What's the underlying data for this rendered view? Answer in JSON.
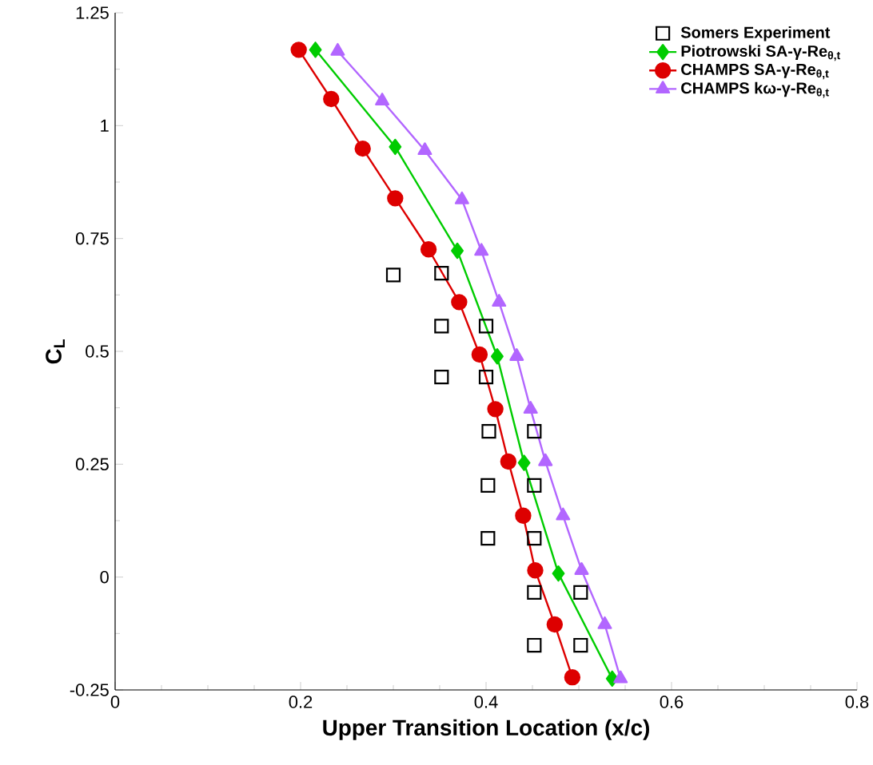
{
  "chart_data": {
    "type": "line",
    "xlabel": "Upper Transition Location (x/c)",
    "ylabel": "C$_{L}$",
    "xlim": [
      0,
      0.8
    ],
    "ylim": [
      -0.25,
      1.25
    ],
    "xticks": [
      0,
      0.2,
      0.4,
      0.6,
      0.8
    ],
    "yticks": [
      -0.25,
      0,
      0.25,
      0.5,
      0.75,
      1,
      1.25
    ],
    "legend": "top right",
    "grid": false,
    "series": [
      {
        "name": "Somers Experiment",
        "type": "scatter",
        "marker": "square",
        "color": "#000000",
        "x": [
          0.3,
          0.352,
          0.352,
          0.4,
          0.352,
          0.4,
          0.403,
          0.452,
          0.402,
          0.452,
          0.402,
          0.452,
          0.452,
          0.502,
          0.452,
          0.502
        ],
        "values": [
          0.669,
          0.673,
          0.556,
          0.556,
          0.443,
          0.443,
          0.323,
          0.323,
          0.203,
          0.203,
          0.086,
          0.086,
          -0.034,
          -0.034,
          -0.151,
          -0.151
        ]
      },
      {
        "name": "Piotrowski SA-γ-Re$_{θ,t}$",
        "marker": "diamond",
        "color": "#00cc00",
        "x": [
          0.216,
          0.302,
          0.369,
          0.412,
          0.441,
          0.478,
          0.536
        ],
        "values": [
          1.168,
          0.953,
          0.723,
          0.489,
          0.253,
          0.008,
          -0.225
        ]
      },
      {
        "name": "CHAMPS SA-γ-Re$_{θ,t}$",
        "marker": "circle",
        "color": "#dd0000",
        "x": [
          0.198,
          0.233,
          0.267,
          0.302,
          0.338,
          0.371,
          0.393,
          0.41,
          0.424,
          0.44,
          0.453,
          0.474,
          0.493
        ],
        "values": [
          1.168,
          1.059,
          0.949,
          0.839,
          0.726,
          0.609,
          0.493,
          0.372,
          0.256,
          0.136,
          0.015,
          -0.105,
          -0.222
        ]
      },
      {
        "name": "CHAMPS kω-γ-Re$_{θ,t}$",
        "marker": "triangle",
        "color": "#b266ff",
        "x": [
          0.24,
          0.288,
          0.334,
          0.374,
          0.395,
          0.414,
          0.433,
          0.448,
          0.464,
          0.483,
          0.503,
          0.528,
          0.545
        ],
        "values": [
          1.165,
          1.055,
          0.945,
          0.836,
          0.722,
          0.609,
          0.489,
          0.372,
          0.256,
          0.136,
          0.015,
          -0.105,
          -0.225
        ]
      }
    ]
  }
}
